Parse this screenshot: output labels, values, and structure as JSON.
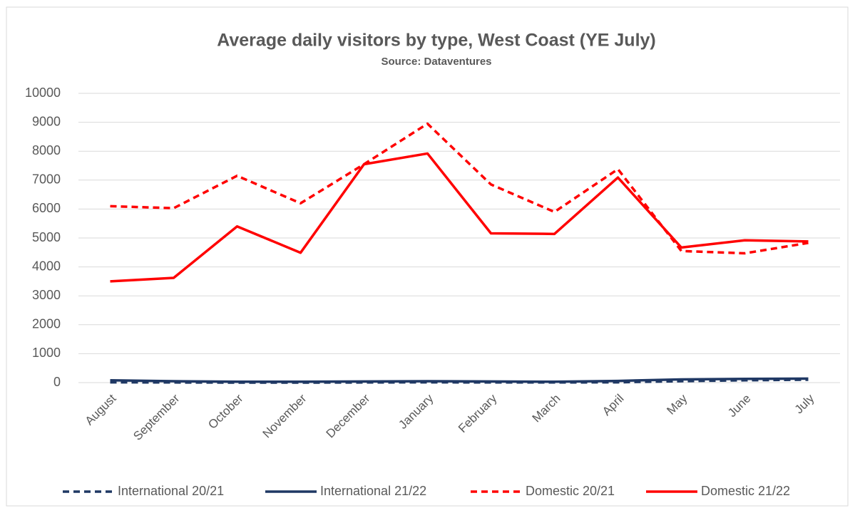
{
  "chart_data": {
    "type": "line",
    "title": "Average daily visitors by type, West Coast (YE July)",
    "subtitle": "Source: Dataventures",
    "categories": [
      "August",
      "September",
      "October",
      "November",
      "December",
      "January",
      "February",
      "March",
      "April",
      "May",
      "June",
      "July"
    ],
    "series": [
      {
        "name": "International 20/21",
        "color": "#1f3864",
        "dash": true,
        "values": [
          10,
          5,
          0,
          0,
          5,
          10,
          5,
          5,
          10,
          50,
          80,
          100
        ]
      },
      {
        "name": "International 21/22",
        "color": "#1f3864",
        "dash": false,
        "values": [
          80,
          50,
          30,
          30,
          40,
          50,
          40,
          30,
          60,
          110,
          130,
          140
        ]
      },
      {
        "name": "Domestic 20/21",
        "color": "#ff0000",
        "dash": true,
        "values": [
          6100,
          6030,
          7150,
          6200,
          7550,
          8950,
          6850,
          5900,
          7380,
          4550,
          4470,
          4830
        ]
      },
      {
        "name": "Domestic 21/22",
        "color": "#ff0000",
        "dash": false,
        "values": [
          3500,
          3620,
          5400,
          4490,
          7550,
          7920,
          5160,
          5140,
          7090,
          4670,
          4920,
          4880
        ]
      }
    ],
    "ylim": [
      0,
      10000
    ],
    "yticks": [
      0,
      1000,
      2000,
      3000,
      4000,
      5000,
      6000,
      7000,
      8000,
      9000,
      10000
    ],
    "grid": true,
    "legend": "bottom"
  }
}
